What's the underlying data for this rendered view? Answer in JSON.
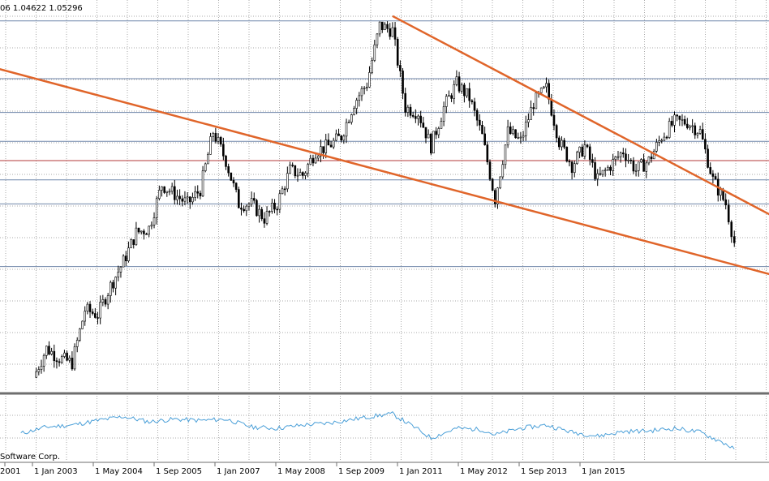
{
  "header": {
    "ohlc_text": "06 1.04622 1.05296"
  },
  "footer": {
    "copyright_text": "Software Corp."
  },
  "colors": {
    "background": "#ffffff",
    "grid": "#a9a9a9",
    "level_line": "#6f86aa",
    "red_level": "#b33a3a",
    "channel": "#e0652a",
    "candle": "#000000",
    "indicator": "#4a9fd8",
    "separator": "#6e6e6e"
  },
  "chart_data": [
    {
      "type": "candlestick",
      "title": "",
      "x_tick_labels": [
        "2001",
        "1 Jan 2003",
        "1 May 2004",
        "1 Sep 2005",
        "1 Jan 2007",
        "1 May 2008",
        "1 Sep 2009",
        "1 Jan 2011",
        "1 May 2012",
        "1 Sep 2013",
        "1 Jan 2015"
      ],
      "y_range": [
        0.82,
        1.63
      ],
      "grid": true,
      "series": [
        {
          "values": [
            {
              "date": "2001-06",
              "close": 0.85
            },
            {
              "date": "2001-09",
              "close": 0.91
            },
            {
              "date": "2001-12",
              "close": 0.89
            },
            {
              "date": "2002-03",
              "close": 0.88
            },
            {
              "date": "2002-06",
              "close": 0.99
            },
            {
              "date": "2002-09",
              "close": 0.98
            },
            {
              "date": "2002-12",
              "close": 1.04
            },
            {
              "date": "2003-03",
              "close": 1.09
            },
            {
              "date": "2003-06",
              "close": 1.15
            },
            {
              "date": "2003-09",
              "close": 1.16
            },
            {
              "date": "2003-12",
              "close": 1.25
            },
            {
              "date": "2004-03",
              "close": 1.23
            },
            {
              "date": "2004-06",
              "close": 1.21
            },
            {
              "date": "2004-09",
              "close": 1.24
            },
            {
              "date": "2004-12",
              "close": 1.36
            },
            {
              "date": "2005-03",
              "close": 1.3
            },
            {
              "date": "2005-06",
              "close": 1.21
            },
            {
              "date": "2005-09",
              "close": 1.21
            },
            {
              "date": "2005-12",
              "close": 1.18
            },
            {
              "date": "2006-03",
              "close": 1.21
            },
            {
              "date": "2006-06",
              "close": 1.28
            },
            {
              "date": "2006-09",
              "close": 1.27
            },
            {
              "date": "2006-12",
              "close": 1.32
            },
            {
              "date": "2007-03",
              "close": 1.33
            },
            {
              "date": "2007-06",
              "close": 1.35
            },
            {
              "date": "2007-09",
              "close": 1.42
            },
            {
              "date": "2007-12",
              "close": 1.46
            },
            {
              "date": "2008-03",
              "close": 1.58
            },
            {
              "date": "2008-06",
              "close": 1.57
            },
            {
              "date": "2008-09",
              "close": 1.41
            },
            {
              "date": "2008-12",
              "close": 1.4
            },
            {
              "date": "2009-03",
              "close": 1.33
            },
            {
              "date": "2009-06",
              "close": 1.41
            },
            {
              "date": "2009-09",
              "close": 1.46
            },
            {
              "date": "2009-12",
              "close": 1.43
            },
            {
              "date": "2010-03",
              "close": 1.35
            },
            {
              "date": "2010-06",
              "close": 1.22
            },
            {
              "date": "2010-09",
              "close": 1.36
            },
            {
              "date": "2010-12",
              "close": 1.34
            },
            {
              "date": "2011-03",
              "close": 1.42
            },
            {
              "date": "2011-06",
              "close": 1.45
            },
            {
              "date": "2011-09",
              "close": 1.34
            },
            {
              "date": "2011-12",
              "close": 1.29
            },
            {
              "date": "2012-03",
              "close": 1.33
            },
            {
              "date": "2012-06",
              "close": 1.26
            },
            {
              "date": "2012-09",
              "close": 1.29
            },
            {
              "date": "2012-12",
              "close": 1.32
            },
            {
              "date": "2013-03",
              "close": 1.28
            },
            {
              "date": "2013-06",
              "close": 1.3
            },
            {
              "date": "2013-09",
              "close": 1.35
            },
            {
              "date": "2013-12",
              "close": 1.38
            },
            {
              "date": "2014-03",
              "close": 1.38
            },
            {
              "date": "2014-06",
              "close": 1.36
            },
            {
              "date": "2014-09",
              "close": 1.26
            },
            {
              "date": "2014-12",
              "close": 1.21
            },
            {
              "date": "2015-02",
              "close": 1.13
            }
          ]
        }
      ],
      "horizontal_levels": [
        1.59,
        1.47,
        1.4,
        1.34,
        1.3,
        1.26,
        1.21,
        1.08
      ],
      "red_level": 1.3,
      "channel_lines": [
        {
          "name": "upper",
          "from": {
            "date": "2008-06",
            "value": 1.6
          },
          "to": {
            "date": "2015-12",
            "value": 1.18
          }
        },
        {
          "name": "lower",
          "from": {
            "date": "2000-10",
            "value": 1.49
          },
          "to": {
            "date": "2015-12",
            "value": 1.06
          }
        }
      ]
    },
    {
      "type": "line",
      "title": "",
      "x_tick_labels": [
        "2001",
        "1 Jan 2003",
        "1 May 2004",
        "1 Sep 2005",
        "1 Jan 2007",
        "1 May 2008",
        "1 Sep 2009",
        "1 Jan 2011",
        "1 May 2012",
        "1 Sep 2013",
        "1 Jan 2015"
      ],
      "y_range": [
        0,
        100
      ],
      "series": [
        {
          "values": [
            {
              "date": "2001-03",
              "y": 42
            },
            {
              "date": "2001-09",
              "y": 52
            },
            {
              "date": "2002-03",
              "y": 55
            },
            {
              "date": "2002-09",
              "y": 62
            },
            {
              "date": "2003-03",
              "y": 68
            },
            {
              "date": "2003-09",
              "y": 60
            },
            {
              "date": "2004-03",
              "y": 64
            },
            {
              "date": "2004-09",
              "y": 62
            },
            {
              "date": "2005-03",
              "y": 64
            },
            {
              "date": "2005-09",
              "y": 52
            },
            {
              "date": "2006-03",
              "y": 50
            },
            {
              "date": "2006-09",
              "y": 55
            },
            {
              "date": "2007-03",
              "y": 58
            },
            {
              "date": "2007-09",
              "y": 64
            },
            {
              "date": "2008-03",
              "y": 70
            },
            {
              "date": "2008-06",
              "y": 72
            },
            {
              "date": "2008-12",
              "y": 48
            },
            {
              "date": "2009-03",
              "y": 35
            },
            {
              "date": "2009-09",
              "y": 50
            },
            {
              "date": "2010-03",
              "y": 48
            },
            {
              "date": "2010-06",
              "y": 40
            },
            {
              "date": "2010-12",
              "y": 50
            },
            {
              "date": "2011-06",
              "y": 55
            },
            {
              "date": "2011-12",
              "y": 44
            },
            {
              "date": "2012-06",
              "y": 38
            },
            {
              "date": "2012-12",
              "y": 45
            },
            {
              "date": "2013-06",
              "y": 46
            },
            {
              "date": "2013-12",
              "y": 50
            },
            {
              "date": "2014-06",
              "y": 44
            },
            {
              "date": "2014-12",
              "y": 26
            },
            {
              "date": "2015-02",
              "y": 18
            }
          ]
        }
      ]
    }
  ]
}
